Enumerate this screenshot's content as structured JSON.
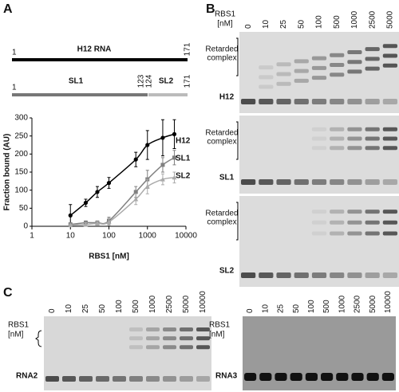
{
  "panel_labels": [
    "A",
    "B",
    "C"
  ],
  "diagram": {
    "full": {
      "name": "H12 RNA",
      "start": "1",
      "end": "171"
    },
    "domains": {
      "sl1": "SL1",
      "sl2": "SL2",
      "start": "1",
      "sl1_end": "123",
      "sl2_start": "124",
      "end": "171"
    }
  },
  "chart_data": {
    "type": "scatter",
    "x_label": "RBS1 [nM]",
    "y_label": "Fraction bound (AU)",
    "x": [
      10,
      25,
      50,
      100,
      500,
      1000,
      2500,
      5000
    ],
    "xlim": [
      1,
      10000
    ],
    "xticks": [
      1,
      10,
      100,
      1000,
      10000
    ],
    "log_x": true,
    "ylim": [
      0,
      300
    ],
    "yticks": [
      0,
      50,
      100,
      150,
      200,
      250,
      300
    ],
    "series": [
      {
        "name": "H12",
        "color": "#000000",
        "marker": "circle",
        "values": [
          30,
          65,
          95,
          120,
          185,
          225,
          245,
          255
        ],
        "errors": [
          30,
          10,
          15,
          15,
          20,
          40,
          50,
          40
        ]
      },
      {
        "name": "SL1",
        "color": "#808080",
        "marker": "square",
        "values": [
          5,
          10,
          10,
          15,
          95,
          130,
          170,
          190
        ],
        "errors": [
          5,
          5,
          5,
          10,
          15,
          25,
          20,
          20
        ]
      },
      {
        "name": "SL2",
        "color": "#aaaaaa",
        "marker": "triangle",
        "values": [
          3,
          5,
          8,
          12,
          75,
          110,
          130,
          135
        ],
        "errors": [
          3,
          5,
          5,
          10,
          15,
          20,
          15,
          15
        ]
      }
    ]
  },
  "gel_b": {
    "header": [
      "RBS1",
      "[nM]"
    ],
    "concentrations": [
      "0",
      "10",
      "25",
      "50",
      "100",
      "500",
      "1000",
      "2500",
      "5000"
    ],
    "blots": [
      {
        "name": "H12",
        "complex": [
          "Retarded",
          "complex"
        ]
      },
      {
        "name": "SL1",
        "complex": [
          "Retarded",
          "complex"
        ]
      },
      {
        "name": "SL2",
        "complex": [
          "Retarded",
          "complex"
        ]
      }
    ]
  },
  "gel_c": [
    {
      "header": [
        "RBS1",
        "[nM]"
      ],
      "concentrations": [
        "0",
        "10",
        "25",
        "50",
        "100",
        "500",
        "1000",
        "2500",
        "5000",
        "10000"
      ],
      "name": "RNA2"
    },
    {
      "header": [
        "RBS1",
        "[nM]"
      ],
      "concentrations": [
        "0",
        "10",
        "25",
        "50",
        "100",
        "500",
        "1000",
        "2500",
        "5000",
        "10000"
      ],
      "name": "RNA3"
    }
  ]
}
